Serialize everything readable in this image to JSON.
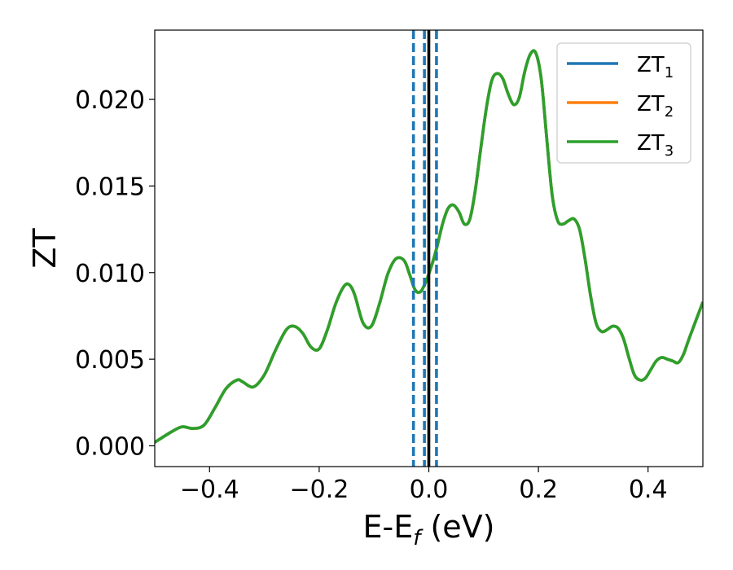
{
  "chart_data": {
    "type": "line",
    "xlabel": {
      "main": "E-E",
      "sub": "f",
      "suffix": " (eV)"
    },
    "ylabel": "ZT",
    "xlim": [
      -0.5,
      0.5
    ],
    "ylim": [
      -0.0012,
      0.024
    ],
    "x_ticks": [
      -0.4,
      -0.2,
      0.0,
      0.2,
      0.4
    ],
    "x_tick_labels": [
      "−0.4",
      "−0.2",
      "0.0",
      "0.2",
      "0.4"
    ],
    "y_ticks": [
      0.0,
      0.005,
      0.01,
      0.015,
      0.02
    ],
    "y_tick_labels": [
      "0.000",
      "0.005",
      "0.010",
      "0.015",
      "0.020"
    ],
    "grid": false,
    "legend_position": "top-right",
    "series": [
      {
        "name": "ZT",
        "subscript": "1",
        "color": "#1f77b4"
      },
      {
        "name": "ZT",
        "subscript": "2",
        "color": "#ff7f0e"
      },
      {
        "name": "ZT",
        "subscript": "3",
        "color": "#2ca02c"
      }
    ],
    "points": {
      "x": [
        -0.5,
        -0.47,
        -0.45,
        -0.43,
        -0.41,
        -0.39,
        -0.37,
        -0.35,
        -0.34,
        -0.32,
        -0.3,
        -0.28,
        -0.26,
        -0.245,
        -0.23,
        -0.215,
        -0.2,
        -0.185,
        -0.17,
        -0.155,
        -0.145,
        -0.135,
        -0.12,
        -0.105,
        -0.09,
        -0.075,
        -0.06,
        -0.045,
        -0.035,
        -0.025,
        -0.015,
        -0.005,
        0.005,
        0.015,
        0.025,
        0.035,
        0.045,
        0.055,
        0.065,
        0.075,
        0.085,
        0.095,
        0.105,
        0.115,
        0.125,
        0.135,
        0.145,
        0.155,
        0.165,
        0.175,
        0.185,
        0.195,
        0.205,
        0.215,
        0.225,
        0.235,
        0.245,
        0.255,
        0.265,
        0.275,
        0.285,
        0.295,
        0.305,
        0.315,
        0.325,
        0.335,
        0.345,
        0.355,
        0.365,
        0.375,
        0.385,
        0.395,
        0.405,
        0.415,
        0.425,
        0.435,
        0.445,
        0.455,
        0.465,
        0.475,
        0.5
      ],
      "y": [
        0.0002,
        0.0008,
        0.0011,
        0.001,
        0.0012,
        0.0022,
        0.0033,
        0.0038,
        0.0037,
        0.0034,
        0.0041,
        0.0055,
        0.0067,
        0.0069,
        0.0065,
        0.0057,
        0.0056,
        0.0067,
        0.0082,
        0.0092,
        0.0093,
        0.0087,
        0.0071,
        0.0069,
        0.0082,
        0.0099,
        0.0108,
        0.0107,
        0.0099,
        0.009,
        0.0089,
        0.0095,
        0.0104,
        0.0115,
        0.0128,
        0.0137,
        0.0139,
        0.0135,
        0.0128,
        0.0131,
        0.0148,
        0.0172,
        0.0195,
        0.0211,
        0.0215,
        0.0212,
        0.0203,
        0.0197,
        0.0201,
        0.0216,
        0.0226,
        0.0227,
        0.0212,
        0.0178,
        0.0145,
        0.013,
        0.0128,
        0.013,
        0.0131,
        0.0125,
        0.0108,
        0.0087,
        0.0071,
        0.0066,
        0.0067,
        0.0069,
        0.0068,
        0.0062,
        0.0051,
        0.0041,
        0.0038,
        0.0039,
        0.0044,
        0.0049,
        0.0051,
        0.005,
        0.0049,
        0.0048,
        0.0053,
        0.0062,
        0.0083
      ]
    },
    "vlines": [
      {
        "x": 0.0,
        "style": "solid",
        "color": "#000000"
      },
      {
        "x": -0.028,
        "style": "dashed",
        "color": "#1f77b4"
      },
      {
        "x": -0.008,
        "style": "dashed",
        "color": "#1f77b4"
      },
      {
        "x": 0.014,
        "style": "dashed",
        "color": "#1f77b4"
      }
    ]
  }
}
